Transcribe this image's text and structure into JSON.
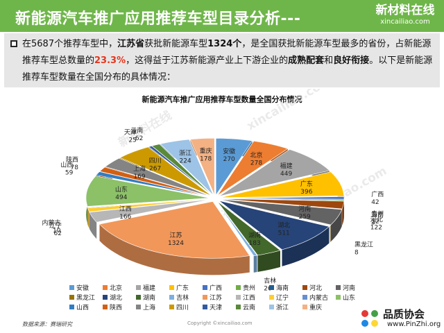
{
  "header": {
    "title": "新能源汽车推广应用推荐车型目录分析---",
    "bg_color": "#6fb64a",
    "brand_name": "新材料在线",
    "brand_domain": "xincailiao.com"
  },
  "intro": {
    "part1": "在5687个推荐车型中，",
    "part2": "江苏省",
    "part3": "获批新能源车型",
    "part4": "1324个",
    "part5": "，是全国获批新能源车型最多的省份，占新能源推荐车型总数量的",
    "part6": "23.3%",
    "part7": "，这得益于江苏新能源产业上下游企业的",
    "part8": "成熟配套",
    "part9": "和",
    "part10": "良好衔接",
    "part11": "。以下是新能源推荐车型数量在全国分布的具体情况："
  },
  "watermark": {
    "cn": "新材料在线",
    "url": "xincailiao.com"
  },
  "chart_data": {
    "type": "pie",
    "style": "3d-exploded",
    "title": "新能源汽车推广应用推荐车型数量全国分布情况",
    "legend_position": "bottom",
    "slices": [
      {
        "name": "安徽",
        "value": 270,
        "color": "#5b9bd5"
      },
      {
        "name": "北京",
        "value": 278,
        "color": "#ed7d31"
      },
      {
        "name": "福建",
        "value": 449,
        "color": "#a5a5a5"
      },
      {
        "name": "广东",
        "value": 396,
        "color": "#ffc000"
      },
      {
        "name": "广西",
        "value": 42,
        "color": "#4472c4"
      },
      {
        "name": "贵州",
        "value": 22,
        "color": "#70ad47"
      },
      {
        "name": "海南",
        "value": 3,
        "color": "#255e91"
      },
      {
        "name": "河北",
        "value": 122,
        "color": "#9e480e"
      },
      {
        "name": "河南",
        "value": 259,
        "color": "#636363"
      },
      {
        "name": "黑龙江",
        "value": 8,
        "color": "#997300"
      },
      {
        "name": "湖北",
        "value": 511,
        "color": "#264478"
      },
      {
        "name": "湖南",
        "value": 183,
        "color": "#43682b"
      },
      {
        "name": "吉林",
        "value": 26,
        "color": "#7cafdd"
      },
      {
        "name": "江苏",
        "value": 1324,
        "color": "#f1975a"
      },
      {
        "name": "江西",
        "value": 166,
        "color": "#b7b7b7"
      },
      {
        "name": "辽宁",
        "value": 62,
        "color": "#ffcd33"
      },
      {
        "name": "内蒙古",
        "value": 10,
        "color": "#698ed0"
      },
      {
        "name": "山东",
        "value": 494,
        "color": "#8cc168"
      },
      {
        "name": "山西",
        "value": 59,
        "color": "#327dc2"
      },
      {
        "name": "陕西",
        "value": 78,
        "color": "#d26012"
      },
      {
        "name": "上海",
        "value": 169,
        "color": "#848484"
      },
      {
        "name": "四川",
        "value": 267,
        "color": "#cc9a00"
      },
      {
        "name": "天津",
        "value": 25,
        "color": "#335aa1"
      },
      {
        "name": "云南",
        "value": 62,
        "color": "#5a8a39"
      },
      {
        "name": "浙江",
        "value": 224,
        "color": "#9dc3e6"
      },
      {
        "name": "重庆",
        "value": 178,
        "color": "#f4b183"
      }
    ]
  },
  "source": "数据来源：赛瑞研究",
  "copyright": "Copyright ©xincailiao.com",
  "corner_logo": {
    "name": "品质协会",
    "url": "www.PinZhi.org"
  }
}
